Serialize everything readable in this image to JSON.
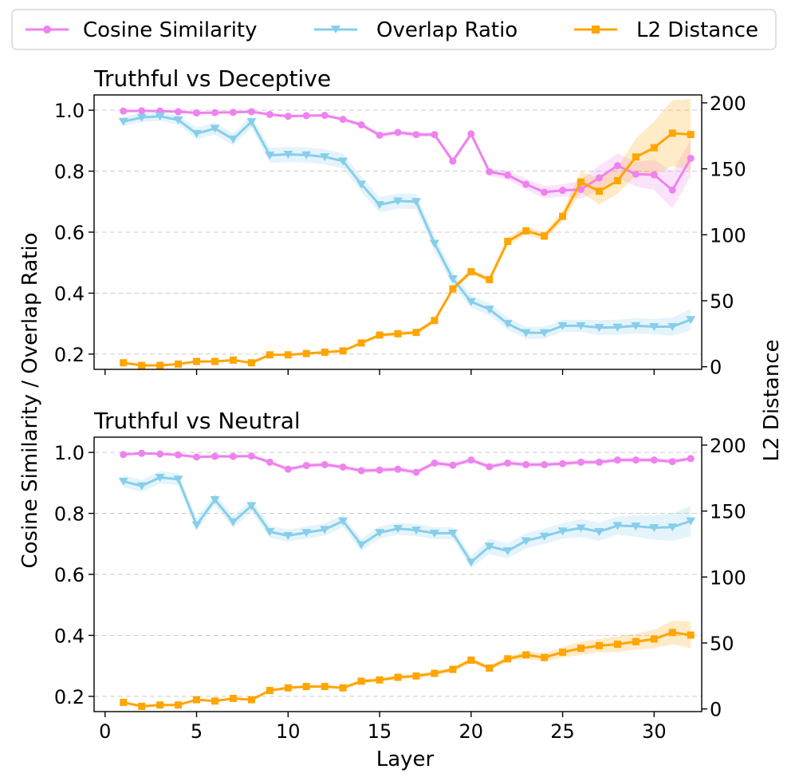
{
  "chart_data": {
    "type": "line",
    "xlabel": "Layer",
    "ylabel_left": "Cosine Similarity / Overlap Ratio",
    "ylabel_right": "L2 Distance",
    "xlim": [
      -0.6,
      32.6
    ],
    "xticks": [
      0,
      5,
      10,
      15,
      20,
      25,
      30
    ],
    "ylim_left": [
      0.15,
      1.05
    ],
    "yticks_left": [
      0.2,
      0.4,
      0.6,
      0.8,
      1.0
    ],
    "ylim_right": [
      -2,
      206
    ],
    "yticks_right": [
      0,
      50,
      100,
      150,
      200
    ],
    "legend": [
      {
        "name": "Cosine Similarity",
        "color": "#ee82ee",
        "marker": "circle"
      },
      {
        "name": "Overlap Ratio",
        "color": "#87ceeb",
        "marker": "triangle-down"
      },
      {
        "name": "L2 Distance",
        "color": "#ffa500",
        "marker": "square"
      }
    ],
    "panels": [
      {
        "title": "Truthful vs Deceptive",
        "x": [
          1,
          2,
          3,
          4,
          5,
          6,
          7,
          8,
          9,
          10,
          11,
          12,
          13,
          14,
          15,
          16,
          17,
          18,
          19,
          20,
          21,
          22,
          23,
          24,
          25,
          26,
          27,
          28,
          29,
          30,
          31,
          32
        ],
        "series": [
          {
            "name": "Cosine Similarity",
            "axis": "left",
            "values": [
              0.997,
              0.998,
              0.997,
              0.995,
              0.991,
              0.992,
              0.993,
              0.995,
              0.986,
              0.98,
              0.982,
              0.983,
              0.97,
              0.952,
              0.918,
              0.927,
              0.92,
              0.92,
              0.833,
              0.922,
              0.798,
              0.787,
              0.757,
              0.731,
              0.737,
              0.74,
              0.778,
              0.818,
              0.79,
              0.788,
              0.738,
              0.842
            ],
            "band": [
              0.003,
              0.003,
              0.003,
              0.004,
              0.004,
              0.004,
              0.004,
              0.004,
              0.005,
              0.005,
              0.005,
              0.005,
              0.006,
              0.007,
              0.008,
              0.008,
              0.008,
              0.008,
              0.01,
              0.008,
              0.012,
              0.015,
              0.018,
              0.02,
              0.02,
              0.03,
              0.04,
              0.04,
              0.04,
              0.05,
              0.06,
              0.06
            ]
          },
          {
            "name": "Overlap Ratio",
            "axis": "left",
            "values": [
              0.963,
              0.976,
              0.98,
              0.968,
              0.923,
              0.94,
              0.905,
              0.962,
              0.852,
              0.855,
              0.853,
              0.847,
              0.833,
              0.757,
              0.69,
              0.702,
              0.7,
              0.563,
              0.447,
              0.372,
              0.347,
              0.3,
              0.27,
              0.27,
              0.293,
              0.293,
              0.287,
              0.288,
              0.293,
              0.29,
              0.29,
              0.313
            ],
            "band": [
              0.015,
              0.015,
              0.015,
              0.015,
              0.02,
              0.02,
              0.02,
              0.02,
              0.025,
              0.025,
              0.025,
              0.025,
              0.025,
              0.025,
              0.025,
              0.025,
              0.025,
              0.025,
              0.025,
              0.02,
              0.02,
              0.02,
              0.02,
              0.02,
              0.02,
              0.02,
              0.025,
              0.025,
              0.025,
              0.025,
              0.03,
              0.035
            ]
          },
          {
            "name": "L2 Distance",
            "axis": "right",
            "values": [
              3,
              1,
              1,
              2,
              4,
              4,
              5,
              3,
              9,
              9,
              10,
              11,
              12,
              18,
              24,
              25,
              26,
              35,
              59,
              72,
              66,
              95,
              103,
              99,
              114,
              140,
              133,
              141,
              159,
              166,
              177,
              176
            ],
            "band": [
              0.5,
              0.5,
              0.5,
              0.5,
              0.5,
              0.5,
              0.5,
              0.5,
              0.8,
              0.8,
              0.8,
              1,
              1,
              1,
              1.5,
              1.5,
              1.5,
              2,
              2,
              2,
              2,
              3,
              3,
              3,
              4,
              8,
              10,
              10,
              14,
              20,
              25,
              27
            ]
          }
        ]
      },
      {
        "title": "Truthful vs Neutral",
        "x": [
          1,
          2,
          3,
          4,
          5,
          6,
          7,
          8,
          9,
          10,
          11,
          12,
          13,
          14,
          15,
          16,
          17,
          18,
          19,
          20,
          21,
          22,
          23,
          24,
          25,
          26,
          27,
          28,
          29,
          30,
          31,
          32
        ],
        "series": [
          {
            "name": "Cosine Similarity",
            "axis": "left",
            "values": [
              0.993,
              0.997,
              0.995,
              0.992,
              0.985,
              0.987,
              0.987,
              0.988,
              0.968,
              0.945,
              0.957,
              0.96,
              0.952,
              0.94,
              0.942,
              0.945,
              0.935,
              0.965,
              0.958,
              0.975,
              0.953,
              0.965,
              0.96,
              0.96,
              0.963,
              0.968,
              0.968,
              0.975,
              0.975,
              0.975,
              0.97,
              0.98
            ],
            "band": [
              0.004,
              0.004,
              0.004,
              0.004,
              0.005,
              0.005,
              0.005,
              0.005,
              0.006,
              0.007,
              0.007,
              0.007,
              0.007,
              0.008,
              0.008,
              0.008,
              0.008,
              0.008,
              0.008,
              0.008,
              0.008,
              0.008,
              0.008,
              0.008,
              0.008,
              0.008,
              0.008,
              0.008,
              0.008,
              0.008,
              0.008,
              0.008
            ]
          },
          {
            "name": "Overlap Ratio",
            "axis": "left",
            "values": [
              0.905,
              0.89,
              0.918,
              0.912,
              0.762,
              0.845,
              0.772,
              0.825,
              0.74,
              0.727,
              0.737,
              0.747,
              0.775,
              0.697,
              0.737,
              0.75,
              0.745,
              0.735,
              0.735,
              0.64,
              0.692,
              0.677,
              0.71,
              0.725,
              0.742,
              0.752,
              0.74,
              0.76,
              0.758,
              0.753,
              0.755,
              0.775
            ],
            "band": [
              0.02,
              0.02,
              0.02,
              0.02,
              0.02,
              0.02,
              0.02,
              0.02,
              0.02,
              0.02,
              0.02,
              0.02,
              0.02,
              0.02,
              0.02,
              0.02,
              0.02,
              0.02,
              0.02,
              0.02,
              0.025,
              0.025,
              0.025,
              0.025,
              0.025,
              0.03,
              0.03,
              0.03,
              0.035,
              0.04,
              0.045,
              0.05
            ]
          },
          {
            "name": "L2 Distance",
            "axis": "right",
            "values": [
              5,
              2,
              3,
              3,
              7,
              6,
              8,
              7,
              14,
              16,
              17,
              17,
              16,
              21,
              22,
              24,
              25,
              27,
              30,
              37,
              31,
              38,
              41,
              39,
              43,
              46,
              48,
              49,
              51,
              53,
              58,
              56
            ],
            "band": [
              0.5,
              0.5,
              0.5,
              0.5,
              0.5,
              0.5,
              0.5,
              0.5,
              1,
              1,
              1,
              1,
              1,
              1.5,
              1.5,
              1.5,
              1.5,
              1.5,
              2,
              2,
              2,
              2,
              3,
              3,
              4,
              5,
              5,
              6,
              6,
              7,
              9,
              10
            ]
          }
        ]
      }
    ]
  }
}
